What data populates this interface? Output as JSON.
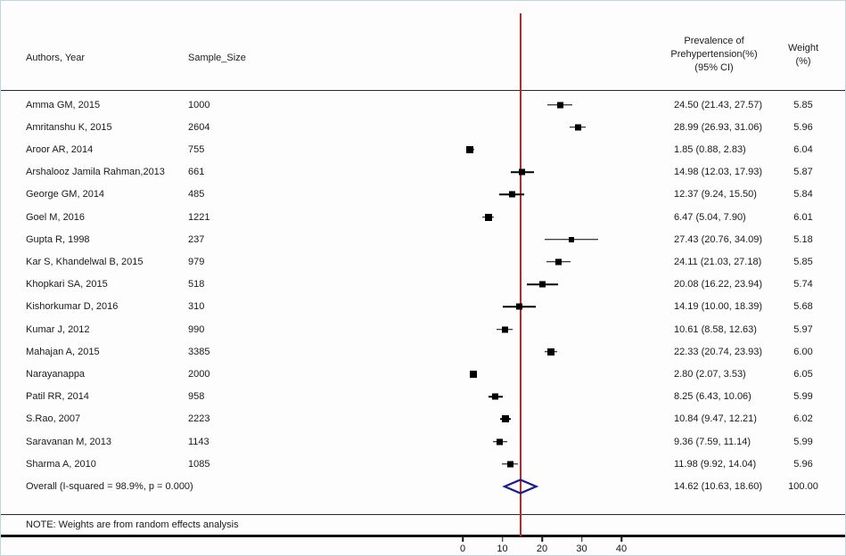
{
  "chart_data": {
    "type": "forest",
    "title": "",
    "columns": {
      "authors": "Authors, Year",
      "sample_size": "Sample_Size",
      "effect_header_line1": "Prevalence of",
      "effect_header_line2": "Prehypertension(%)",
      "effect_header_line3": "(95% CI)",
      "weight_header_line1": "Weight",
      "weight_header_line2": "(%)"
    },
    "studies": [
      {
        "author": "Amma GM, 2015",
        "sample_size": "1000",
        "effect": 24.5,
        "ci_low": 21.43,
        "ci_high": 27.57,
        "estimate_label": "24.50 (21.43, 27.57)",
        "weight": "5.85"
      },
      {
        "author": "Amritanshu K, 2015",
        "sample_size": "2604",
        "effect": 28.99,
        "ci_low": 26.93,
        "ci_high": 31.06,
        "estimate_label": "28.99 (26.93, 31.06)",
        "weight": "5.96"
      },
      {
        "author": "Aroor AR, 2014",
        "sample_size": "755",
        "effect": 1.85,
        "ci_low": 0.88,
        "ci_high": 2.83,
        "estimate_label": "1.85 (0.88, 2.83)",
        "weight": "6.04"
      },
      {
        "author": "Arshalooz Jamila Rahman,2013",
        "sample_size": "661",
        "effect": 14.98,
        "ci_low": 12.03,
        "ci_high": 17.93,
        "estimate_label": "14.98 (12.03, 17.93)",
        "weight": "5.87"
      },
      {
        "author": "George GM, 2014",
        "sample_size": "485",
        "effect": 12.37,
        "ci_low": 9.24,
        "ci_high": 15.5,
        "estimate_label": "12.37 (9.24, 15.50)",
        "weight": "5.84"
      },
      {
        "author": "Goel M, 2016",
        "sample_size": "1221",
        "effect": 6.47,
        "ci_low": 5.04,
        "ci_high": 7.9,
        "estimate_label": "6.47 (5.04, 7.90)",
        "weight": "6.01"
      },
      {
        "author": "Gupta R, 1998",
        "sample_size": "237",
        "effect": 27.43,
        "ci_low": 20.76,
        "ci_high": 34.09,
        "estimate_label": "27.43 (20.76, 34.09)",
        "weight": "5.18"
      },
      {
        "author": "Kar S, Khandelwal B, 2015",
        "sample_size": "979",
        "effect": 24.11,
        "ci_low": 21.03,
        "ci_high": 27.18,
        "estimate_label": "24.11 (21.03, 27.18)",
        "weight": "5.85"
      },
      {
        "author": "Khopkari SA, 2015",
        "sample_size": "518",
        "effect": 20.08,
        "ci_low": 16.22,
        "ci_high": 23.94,
        "estimate_label": "20.08 (16.22, 23.94)",
        "weight": "5.74"
      },
      {
        "author": "Kishorkumar D, 2016",
        "sample_size": "310",
        "effect": 14.19,
        "ci_low": 10.0,
        "ci_high": 18.39,
        "estimate_label": "14.19 (10.00, 18.39)",
        "weight": "5.68"
      },
      {
        "author": "Kumar J, 2012",
        "sample_size": "990",
        "effect": 10.61,
        "ci_low": 8.58,
        "ci_high": 12.63,
        "estimate_label": "10.61 (8.58, 12.63)",
        "weight": "5.97"
      },
      {
        "author": "Mahajan A, 2015",
        "sample_size": "3385",
        "effect": 22.33,
        "ci_low": 20.74,
        "ci_high": 23.93,
        "estimate_label": "22.33 (20.74, 23.93)",
        "weight": "6.00"
      },
      {
        "author": "Narayanappa",
        "sample_size": "2000",
        "effect": 2.8,
        "ci_low": 2.07,
        "ci_high": 3.53,
        "estimate_label": "2.80 (2.07, 3.53)",
        "weight": "6.05"
      },
      {
        "author": "Patil RR, 2014",
        "sample_size": "958",
        "effect": 8.25,
        "ci_low": 6.43,
        "ci_high": 10.06,
        "estimate_label": "8.25 (6.43, 10.06)",
        "weight": "5.99"
      },
      {
        "author": "S.Rao, 2007",
        "sample_size": "2223",
        "effect": 10.84,
        "ci_low": 9.47,
        "ci_high": 12.21,
        "estimate_label": "10.84 (9.47, 12.21)",
        "weight": "6.02"
      },
      {
        "author": "Saravanan M, 2013",
        "sample_size": "1143",
        "effect": 9.36,
        "ci_low": 7.59,
        "ci_high": 11.14,
        "estimate_label": "9.36 (7.59, 11.14)",
        "weight": "5.99"
      },
      {
        "author": "Sharma A, 2010",
        "sample_size": "1085",
        "effect": 11.98,
        "ci_low": 9.92,
        "ci_high": 14.04,
        "estimate_label": "11.98 (9.92, 14.04)",
        "weight": "5.96"
      }
    ],
    "overall": {
      "label": "Overall  (I-squared = 98.9%, p = 0.000)",
      "effect": 14.62,
      "ci_low": 10.63,
      "ci_high": 18.6,
      "estimate_label": "14.62 (10.63, 18.60)",
      "weight": "100.00"
    },
    "note": "NOTE: Weights are from random effects analysis",
    "x_axis": {
      "ticks": [
        0,
        10,
        20,
        30,
        40
      ],
      "ref_line": 14.62
    },
    "colors": {
      "marker": "#000000",
      "diamond": "#1c1c8f",
      "ref_line": "#cc2222"
    }
  }
}
